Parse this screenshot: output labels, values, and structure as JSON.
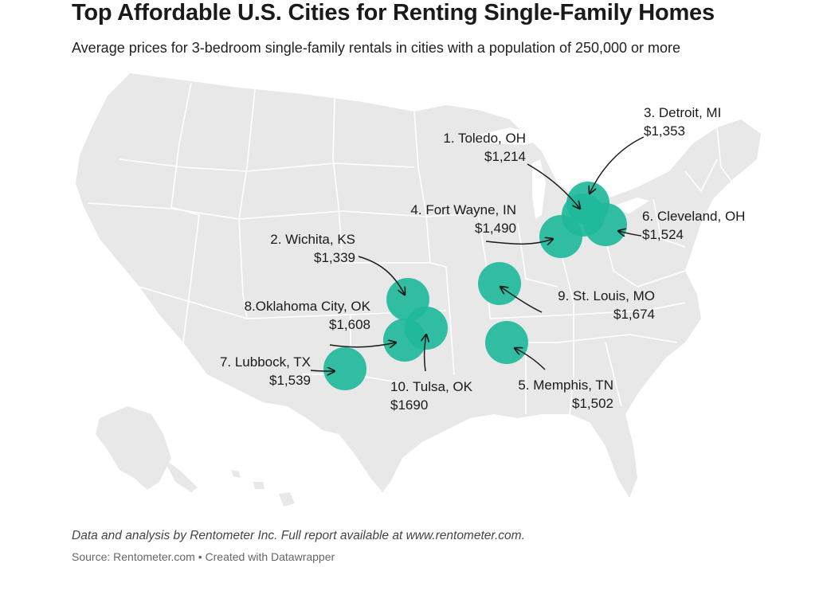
{
  "title": "Top Affordable U.S. Cities for Renting Single-Family Homes",
  "subtitle": "Average prices for 3-bedroom single-family rentals in cities with a population of 250,000 or more",
  "colors": {
    "bubble": "#1fb89b",
    "land": "#e8e8e8",
    "border": "#ffffff",
    "arrow": "#1a1a1a"
  },
  "cities": [
    {
      "rank": 1,
      "label": "1. Toledo, OH",
      "price": "$1,214"
    },
    {
      "rank": 2,
      "label": "2. Wichita, KS",
      "price": "$1,339"
    },
    {
      "rank": 3,
      "label": "3. Detroit, MI",
      "price": "$1,353"
    },
    {
      "rank": 4,
      "label": "4. Fort Wayne, IN",
      "price": "$1,490"
    },
    {
      "rank": 5,
      "label": "5. Memphis, TN",
      "price": "$1,502"
    },
    {
      "rank": 6,
      "label": "6. Cleveland, OH",
      "price": "$1,524"
    },
    {
      "rank": 7,
      "label": "7. Lubbock, TX",
      "price": "$1,539"
    },
    {
      "rank": 8,
      "label": "8.Oklahoma City, OK",
      "price": "$1,608"
    },
    {
      "rank": 9,
      "label": "9. St. Louis, MO",
      "price": "$1,674"
    },
    {
      "rank": 10,
      "label": "10. Tulsa, OK",
      "price": "$1690"
    }
  ],
  "note": "Data and analysis by Rentometer Inc. Full report available at www.rentometer.com.",
  "source": "Source: Rentometer.com • Created with Datawrapper"
}
